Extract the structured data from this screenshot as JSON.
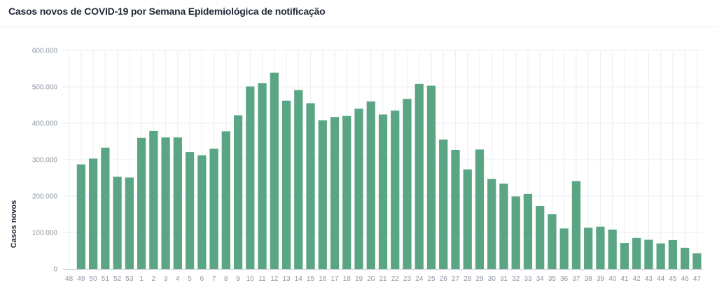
{
  "title": "Casos novos de COVID-19 por Semana Epidemiológica de notificação",
  "colors": {
    "bar": "#5aa584",
    "grid": "#ebedf0",
    "axis": "#b7bec6",
    "tick_text": "#8c96a3"
  },
  "chart_data": {
    "type": "bar",
    "title": "Casos novos de COVID-19 por Semana Epidemiológica de notificação",
    "xlabel": "",
    "ylabel": "Casos novos",
    "ylim": [
      0,
      600000
    ],
    "yticks": [
      0,
      100000,
      200000,
      300000,
      400000,
      500000,
      600000
    ],
    "ytick_labels": [
      "0",
      "100.000",
      "200.000",
      "300.000",
      "400.000",
      "500.000",
      "600.000"
    ],
    "grid": true,
    "categories": [
      "48",
      "49",
      "50",
      "51",
      "52",
      "53",
      "1",
      "2",
      "3",
      "4",
      "5",
      "6",
      "7",
      "8",
      "9",
      "10",
      "11",
      "12",
      "13",
      "14",
      "15",
      "16",
      "17",
      "18",
      "19",
      "20",
      "21",
      "22",
      "23",
      "24",
      "25",
      "26",
      "27",
      "28",
      "29",
      "30",
      "31",
      "32",
      "33",
      "34",
      "35",
      "36",
      "37",
      "38",
      "39",
      "40",
      "41",
      "42",
      "43",
      "44",
      "45",
      "46",
      "47"
    ],
    "values": [
      0,
      287000,
      303000,
      333000,
      253000,
      251000,
      360000,
      379000,
      361000,
      361000,
      321000,
      312000,
      330000,
      378000,
      422000,
      501000,
      510000,
      539000,
      462000,
      491000,
      455000,
      408000,
      417000,
      420000,
      440000,
      460000,
      424000,
      435000,
      467000,
      508000,
      503000,
      355000,
      327000,
      273000,
      328000,
      247000,
      234000,
      199000,
      206000,
      173000,
      150000,
      111000,
      241000,
      113000,
      116000,
      108000,
      71000,
      85000,
      80000,
      70000,
      79000,
      58000,
      43000
    ]
  }
}
